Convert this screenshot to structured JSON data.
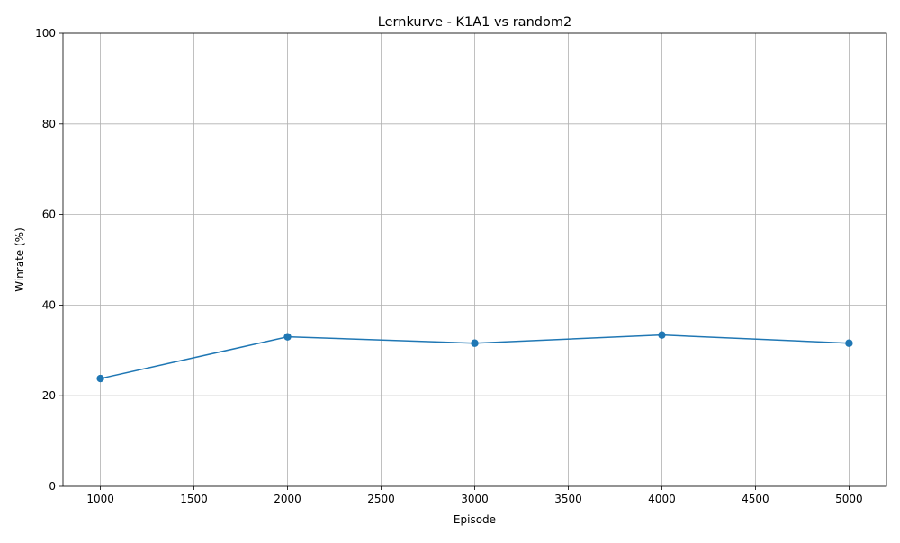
{
  "chart_data": {
    "type": "line",
    "title": "Lernkurve - K1A1 vs random2",
    "xlabel": "Episode",
    "ylabel": "Winrate (%)",
    "xlim": [
      800,
      5200
    ],
    "ylim": [
      0,
      100
    ],
    "x_ticks": [
      1000,
      1500,
      2000,
      2500,
      3000,
      3500,
      4000,
      4500,
      5000
    ],
    "y_ticks": [
      0,
      20,
      40,
      60,
      80,
      100
    ],
    "grid": true,
    "marker": "circle",
    "colors": {
      "line": "#1f77b4"
    },
    "series": [
      {
        "x": [
          1000,
          2000,
          3000,
          4000,
          5000
        ],
        "values": [
          23.8,
          33.0,
          31.6,
          33.4,
          31.6
        ]
      }
    ]
  }
}
